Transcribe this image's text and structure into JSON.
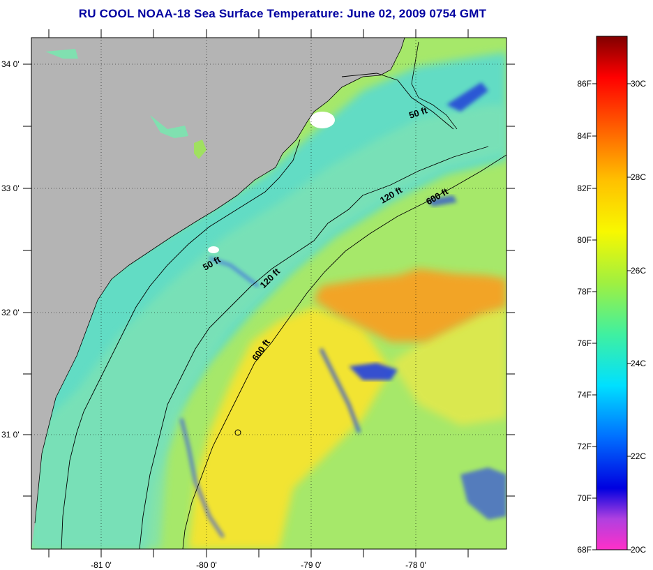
{
  "title": "RU COOL  NOAA-18  Sea Surface Temperature:  June 02, 2009 0754 GMT",
  "map": {
    "lat_labels": [
      "34 0'",
      "33 0'",
      "32 0'",
      "31 0'"
    ],
    "lon_labels": [
      "-81 0'",
      "-80 0'",
      "-79 0'",
      "-78 0'"
    ],
    "contours": [
      {
        "label": "50 ft"
      },
      {
        "label": "50 ft"
      },
      {
        "label": "120 ft"
      },
      {
        "label": "120 ft"
      },
      {
        "label": "600 ft"
      },
      {
        "label": "600 ft"
      }
    ],
    "colors": {
      "land": "#b4b4b4",
      "shelf": "#6ee0c0",
      "mid": "#a8ea5a",
      "warm": "#f4e430",
      "hot": "#f4a020",
      "cold": "#1a40e0"
    }
  },
  "colorbar": {
    "fahrenheit": [
      "86F",
      "84F",
      "82F",
      "80F",
      "78F",
      "76F",
      "74F",
      "72F",
      "70F",
      "68F"
    ],
    "celsius": [
      "30C",
      "28C",
      "26C",
      "24C",
      "22C",
      "20C"
    ]
  }
}
